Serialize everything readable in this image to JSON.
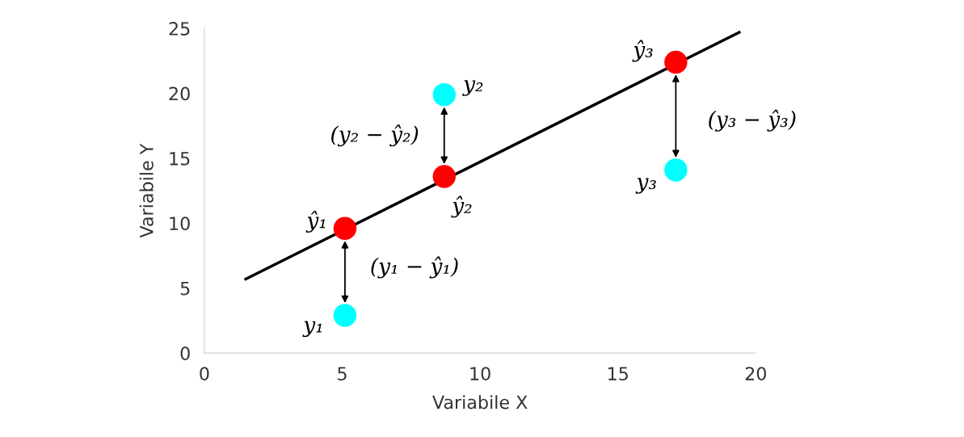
{
  "chart_data": {
    "type": "scatter",
    "xlabel": "Variabile X",
    "ylabel": "Variabile Y",
    "xlim": [
      0,
      20
    ],
    "ylim": [
      0,
      25
    ],
    "xticks": [
      0,
      5,
      10,
      15,
      20
    ],
    "yticks": [
      0,
      5,
      10,
      15,
      20,
      25
    ],
    "grid": false,
    "series": [
      {
        "type": "line",
        "color": "#000000",
        "x": [
          1.5,
          19.4
        ],
        "values": [
          5.7,
          24.7
        ],
        "marker": "none",
        "line_style": "solid"
      },
      {
        "color": "#ff0000",
        "x": [
          5.1,
          8.7,
          17.1
        ],
        "values": [
          9.6,
          13.6,
          22.4
        ],
        "marker": "circle"
      },
      {
        "color": "#00ffff",
        "x": [
          5.1,
          8.7,
          17.1
        ],
        "values": [
          2.9,
          19.9,
          14.1
        ],
        "marker": "circle"
      }
    ],
    "annotations": [
      {
        "text": "ŷ₁",
        "x": 5.1,
        "y": 9.6
      },
      {
        "text": "y₁",
        "x": 5.1,
        "y": 2.9
      },
      "(y₁ − ŷ₁)",
      {
        "text": "y₂",
        "x": 8.7,
        "y": 19.9
      },
      "(y₂ − ŷ₂)",
      {
        "text": "ŷ₂",
        "x": 8.7,
        "y": 13.6
      },
      {
        "text": "ŷ₃",
        "x": 17.1,
        "y": 22.4
      },
      "(y₃ − ŷ₃)",
      {
        "text": "y₃",
        "x": 17.1,
        "y": 14.1
      }
    ]
  }
}
